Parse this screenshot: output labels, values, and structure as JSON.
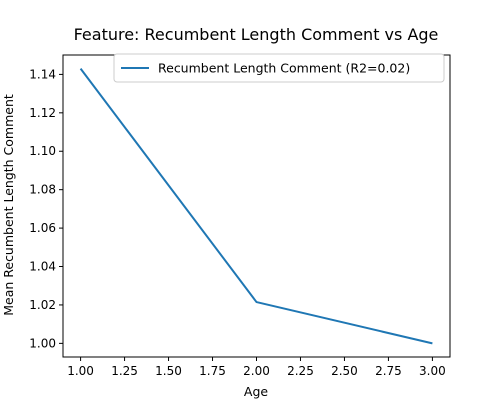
{
  "chart_data": {
    "type": "line",
    "title": "Feature: Recumbent Length Comment vs Age",
    "xlabel": "Age",
    "ylabel": "Mean Recumbent Length Comment",
    "xlim": [
      0.9,
      3.1
    ],
    "ylim": [
      0.9929,
      1.1501
    ],
    "xticks": [
      1.0,
      1.25,
      1.5,
      1.75,
      2.0,
      2.25,
      2.5,
      2.75,
      3.0
    ],
    "xtick_labels": [
      "1.00",
      "1.25",
      "1.50",
      "1.75",
      "2.00",
      "2.25",
      "2.50",
      "2.75",
      "3.00"
    ],
    "yticks": [
      1.0,
      1.02,
      1.04,
      1.06,
      1.08,
      1.1,
      1.12,
      1.14
    ],
    "ytick_labels": [
      "1.00",
      "1.02",
      "1.04",
      "1.06",
      "1.08",
      "1.10",
      "1.12",
      "1.14"
    ],
    "grid": false,
    "legend_position": "top-right",
    "series": [
      {
        "name": "Recumbent Length Comment (R2=0.02)",
        "color": "#1f77b4",
        "x": [
          1.0,
          2.0,
          3.0
        ],
        "y": [
          1.143,
          1.0215,
          1.0
        ]
      }
    ]
  }
}
